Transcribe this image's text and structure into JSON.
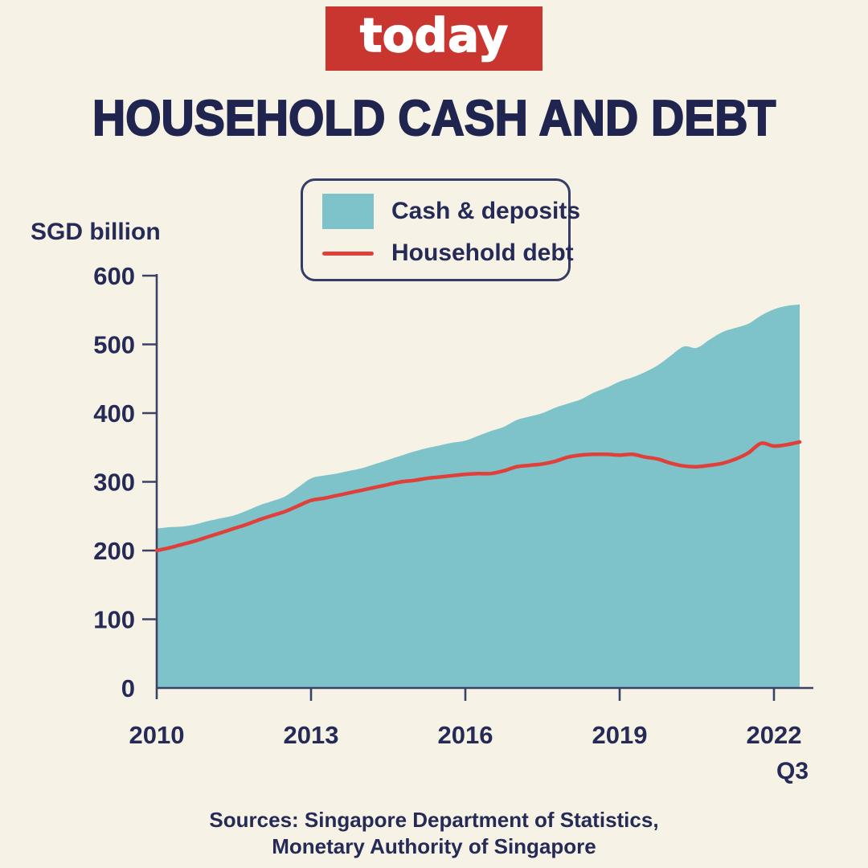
{
  "brand": {
    "logo_text": "today"
  },
  "title": "HOUSEHOLD CASH AND DEBT",
  "y_axis_title": "SGD billion",
  "legend": {
    "items": [
      {
        "label": "Cash & deposits",
        "swatch": "area",
        "color": "#7dc3c9"
      },
      {
        "label": "Household debt",
        "swatch": "line",
        "color": "#e0403a"
      }
    ]
  },
  "footer": {
    "line1": "Sources: Singapore Department of Statistics,",
    "line2": "Monetary Authority of Singapore"
  },
  "colors": {
    "background": "#f6f3e6",
    "text": "#252a56",
    "title_text": "#20254f",
    "axis": "#3c4166",
    "logo_red": "#c9362f",
    "area_teal": "#7dc3c9",
    "line_red": "#e0403a"
  },
  "chart_data": {
    "type": "area",
    "title": "HOUSEHOLD CASH AND DEBT",
    "unit": "SGD billion",
    "frequency": "quarterly",
    "x_start_year": 2010.0,
    "x_step_years": 0.25,
    "x_end_label": "2022 Q3",
    "xlim": [
      2010,
      2022.5
    ],
    "ylim": [
      0,
      600
    ],
    "grid": false,
    "legend_position": "top",
    "y_ticks": [
      0,
      100,
      200,
      300,
      400,
      500,
      600
    ],
    "x_tick_years": [
      2010,
      2013,
      2016,
      2019,
      2022
    ],
    "x_axis_suffix": "Q3",
    "series": [
      {
        "name": "Cash & deposits",
        "type": "area",
        "color": "#7dc3c9",
        "values": [
          232,
          234,
          235,
          238,
          243,
          247,
          251,
          258,
          266,
          272,
          279,
          292,
          305,
          309,
          312,
          316,
          320,
          326,
          332,
          338,
          344,
          349,
          353,
          357,
          360,
          367,
          374,
          380,
          390,
          395,
          400,
          408,
          414,
          420,
          430,
          437,
          446,
          452,
          460,
          470,
          484,
          497,
          495,
          507,
          518,
          524,
          530,
          542,
          551,
          556,
          558
        ]
      },
      {
        "name": "Household debt",
        "type": "line",
        "color": "#e0403a",
        "values": [
          200,
          204,
          209,
          214,
          220,
          226,
          232,
          238,
          245,
          251,
          257,
          265,
          273,
          276,
          280,
          284,
          288,
          292,
          296,
          300,
          302,
          305,
          307,
          309,
          311,
          312,
          312,
          316,
          322,
          324,
          326,
          330,
          336,
          339,
          340,
          340,
          339,
          340,
          336,
          333,
          327,
          323,
          322,
          324,
          327,
          333,
          342,
          356,
          352,
          354,
          358
        ]
      }
    ]
  }
}
